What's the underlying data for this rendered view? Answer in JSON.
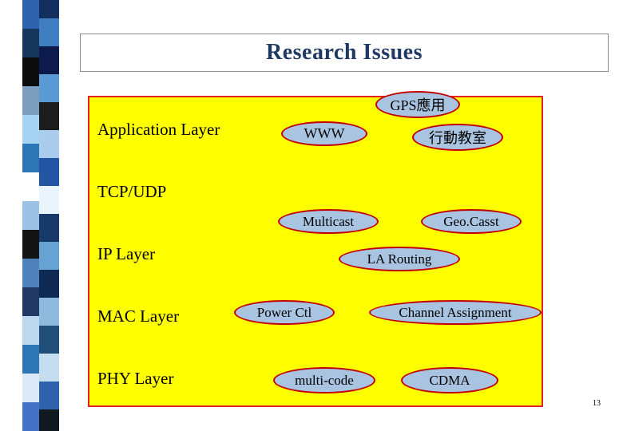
{
  "slide": {
    "title": "Research Issues",
    "page_number": "13"
  },
  "diagram": {
    "layers": [
      {
        "label": "Application Layer"
      },
      {
        "label": "TCP/UDP"
      },
      {
        "label": "IP Layer"
      },
      {
        "label": "MAC Layer"
      },
      {
        "label": "PHY Layer"
      }
    ],
    "ovals": [
      {
        "id": "gps-application",
        "label": "GPS應用"
      },
      {
        "id": "www",
        "label": "WWW"
      },
      {
        "id": "mobile-classroom",
        "label": "行動教室"
      },
      {
        "id": "multicast",
        "label": "Multicast"
      },
      {
        "id": "geocast",
        "label": "Geo.Casst"
      },
      {
        "id": "la-routing",
        "label": "LA Routing"
      },
      {
        "id": "power-control",
        "label": "Power Ctl"
      },
      {
        "id": "channel-assignment",
        "label": "Channel Assignment"
      },
      {
        "id": "multi-code",
        "label": "multi-code"
      },
      {
        "id": "cdma",
        "label": "CDMA"
      }
    ],
    "colors": {
      "panel_fill": "#ffff00",
      "panel_border": "#e32222",
      "oval_fill": "#a9c4e1",
      "oval_border": "#c00000",
      "title_color": "#1f3864",
      "label_color": "#000000"
    }
  },
  "decor": {
    "strip": {
      "col1": [
        "#2e62ad",
        "#16365c",
        "#0b0b0b",
        "#7d9dbe",
        "#a6d3f2",
        "#2e75b6",
        "#ffffff",
        "#9cc3e5",
        "#141414",
        "#4f81bd",
        "#1f3864",
        "#bdd7ee",
        "#2e75b6",
        "#dceaf7",
        "#4472c4"
      ],
      "col2": [
        "#122f5e",
        "#3f7fc1",
        "#0d1b4c",
        "#5b9bd5",
        "#1c1c1c",
        "#aacdee",
        "#2255a4",
        "#e9f4fc",
        "#173a6b",
        "#66a3d2",
        "#0f2a52",
        "#8fbadd",
        "#1f4e79",
        "#c5ddf0",
        "#2e62ad",
        "#101820"
      ]
    }
  }
}
